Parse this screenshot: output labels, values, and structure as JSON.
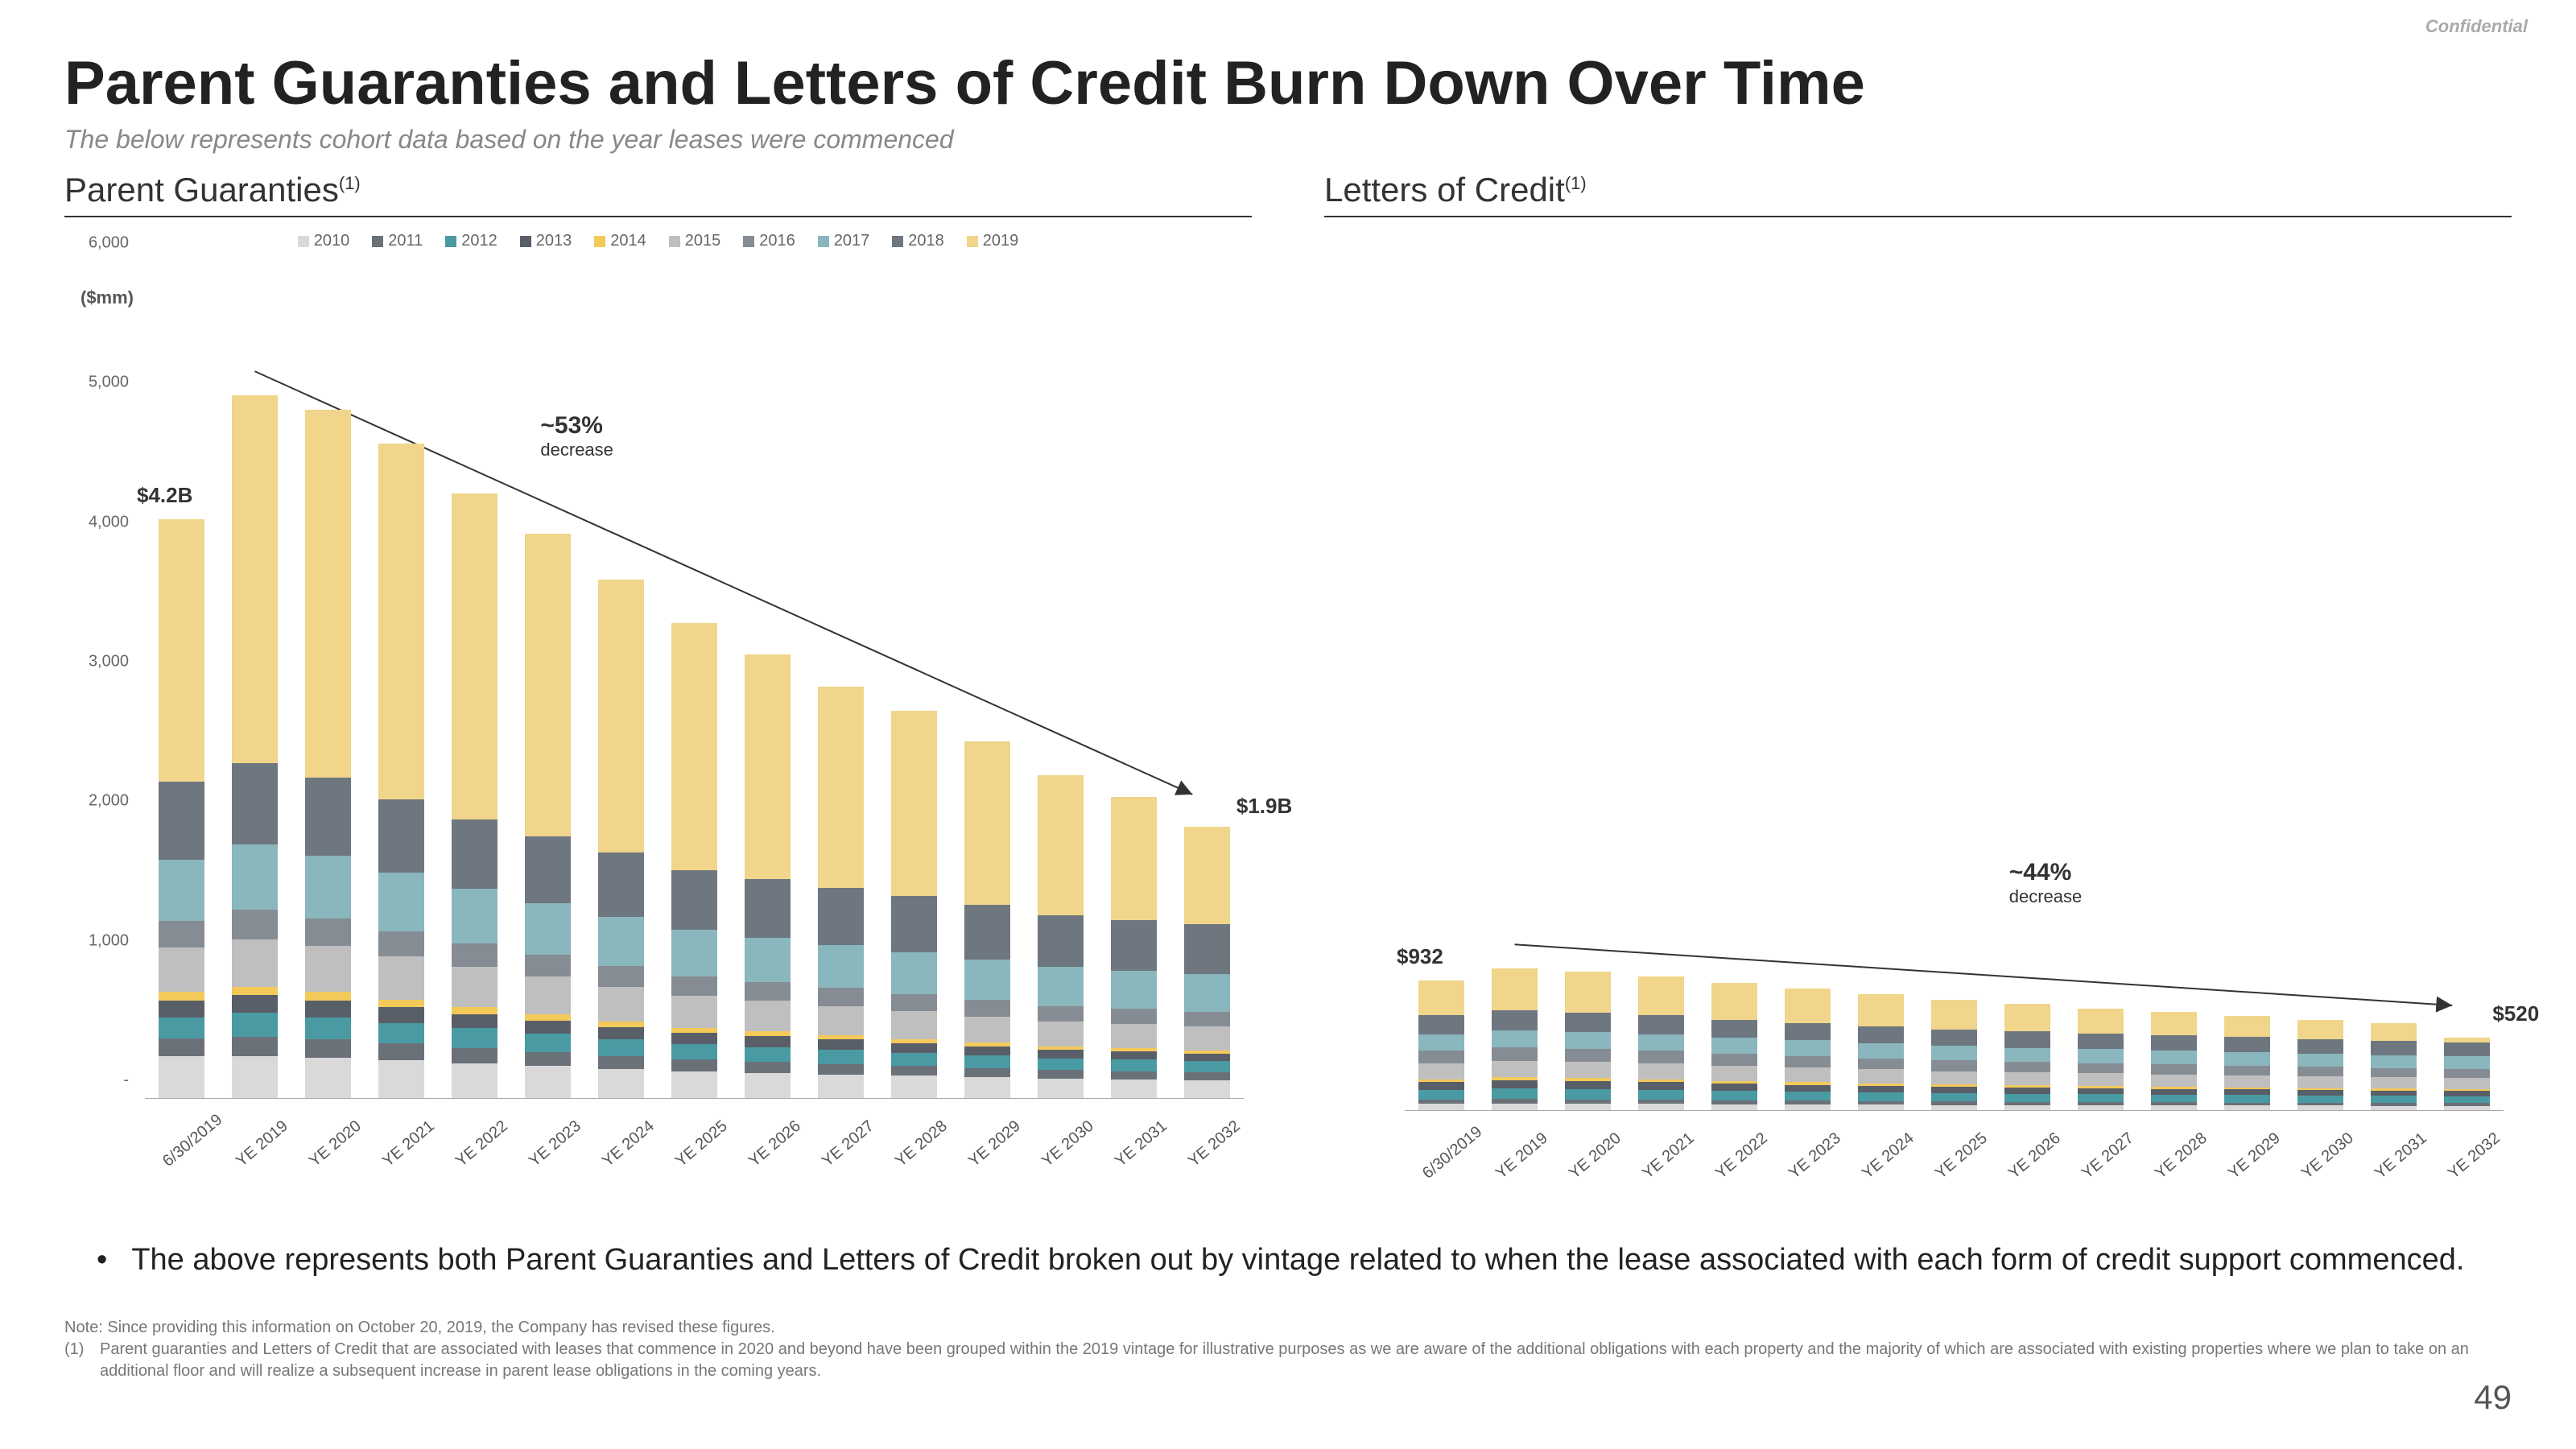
{
  "confidential": "Confidential",
  "title": "Parent Guaranties and Letters of Credit Burn Down Over Time",
  "subtitle": "The below represents cohort data based on the year leases were commenced",
  "page_number": "49",
  "legend": {
    "years": [
      "2010",
      "2011",
      "2012",
      "2013",
      "2014",
      "2015",
      "2016",
      "2017",
      "2018",
      "2019"
    ],
    "colors": [
      "#d9d9d9",
      "#6b7179",
      "#4a9aa3",
      "#595f68",
      "#f3c95a",
      "#bfbfbf",
      "#868c93",
      "#8ab6bd",
      "#6e7680",
      "#f0d58a"
    ]
  },
  "x_categories": [
    "6/30/2019",
    "YE 2019",
    "YE 2020",
    "YE 2021",
    "YE 2022",
    "YE 2023",
    "YE 2024",
    "YE 2025",
    "YE 2026",
    "YE 2027",
    "YE 2028",
    "YE 2029",
    "YE 2030",
    "YE 2031",
    "YE 2032"
  ],
  "chart1": {
    "title": "Parent Guaranties",
    "title_sup": "(1)",
    "y_unit": "($mm)",
    "ymax": 6000,
    "yticks": [
      "-",
      "1,000",
      "2,000",
      "3,000",
      "4,000",
      "5,000",
      "6,000"
    ],
    "ytick_vals": [
      0,
      1000,
      2000,
      3000,
      4000,
      5000,
      6000
    ],
    "callout_start": "$4.2B",
    "callout_end": "$1.9B",
    "decrease": "~53%",
    "decrease_sub": "decrease",
    "stacks": [
      [
        300,
        130,
        150,
        120,
        60,
        320,
        190,
        440,
        560,
        1880
      ],
      [
        300,
        140,
        170,
        130,
        60,
        340,
        210,
        470,
        580,
        2640
      ],
      [
        290,
        130,
        160,
        120,
        60,
        330,
        200,
        450,
        560,
        2640
      ],
      [
        270,
        120,
        150,
        110,
        55,
        310,
        180,
        420,
        530,
        2550
      ],
      [
        250,
        110,
        140,
        100,
        50,
        290,
        170,
        390,
        500,
        2340
      ],
      [
        230,
        100,
        130,
        95,
        45,
        270,
        160,
        370,
        480,
        2170
      ],
      [
        210,
        90,
        120,
        90,
        40,
        250,
        150,
        350,
        460,
        1960
      ],
      [
        190,
        85,
        110,
        85,
        35,
        230,
        140,
        330,
        430,
        1770
      ],
      [
        180,
        80,
        105,
        80,
        32,
        220,
        135,
        320,
        420,
        1610
      ],
      [
        170,
        75,
        100,
        75,
        30,
        210,
        130,
        310,
        410,
        1440
      ],
      [
        160,
        70,
        95,
        70,
        28,
        200,
        125,
        300,
        400,
        1330
      ],
      [
        150,
        65,
        90,
        65,
        26,
        190,
        120,
        290,
        390,
        1170
      ],
      [
        140,
        60,
        85,
        60,
        24,
        180,
        110,
        280,
        370,
        1010
      ],
      [
        135,
        58,
        82,
        58,
        23,
        175,
        108,
        275,
        365,
        880
      ],
      [
        130,
        55,
        80,
        55,
        22,
        170,
        105,
        270,
        360,
        700
      ]
    ]
  },
  "chart2": {
    "title": "Letters of Credit",
    "title_sup": "(1)",
    "ymax": 6000,
    "callout_start": "$932",
    "callout_end": "$520",
    "decrease": "~44%",
    "decrease_sub": "decrease",
    "stacks": [
      [
        45,
        30,
        70,
        55,
        20,
        115,
        90,
        120,
        135,
        252
      ],
      [
        48,
        32,
        75,
        58,
        22,
        120,
        95,
        125,
        140,
        300
      ],
      [
        47,
        31,
        73,
        57,
        21,
        118,
        93,
        123,
        138,
        295
      ],
      [
        45,
        30,
        70,
        55,
        20,
        115,
        90,
        120,
        135,
        280
      ],
      [
        43,
        28,
        67,
        52,
        19,
        110,
        86,
        115,
        130,
        260
      ],
      [
        41,
        27,
        64,
        50,
        18,
        105,
        83,
        112,
        126,
        244
      ],
      [
        39,
        26,
        62,
        48,
        17,
        100,
        80,
        108,
        122,
        228
      ],
      [
        37,
        25,
        59,
        46,
        16,
        96,
        77,
        105,
        118,
        211
      ],
      [
        36,
        24,
        57,
        44,
        16,
        93,
        75,
        103,
        116,
        196
      ],
      [
        35,
        24,
        56,
        43,
        15,
        91,
        73,
        100,
        113,
        180
      ],
      [
        34,
        23,
        54,
        42,
        15,
        89,
        72,
        98,
        111,
        167
      ],
      [
        33,
        22,
        53,
        41,
        14,
        86,
        70,
        96,
        109,
        151
      ],
      [
        32,
        22,
        51,
        40,
        14,
        84,
        68,
        94,
        106,
        139
      ],
      [
        31,
        21,
        50,
        39,
        13,
        82,
        67,
        92,
        104,
        126
      ],
      [
        30,
        21,
        49,
        38,
        13,
        80,
        65,
        90,
        102,
        32
      ]
    ]
  },
  "bullet": "The above represents both Parent Guaranties and Letters of Credit broken out by vintage related to when the lease associated with each form of credit support commenced.",
  "footnote_note": "Note: Since providing this information on October 20, 2019, the Company has revised these figures.",
  "footnote_1": "Parent guaranties and Letters of Credit that are associated with leases that commence in 2020 and beyond have been grouped within the 2019 vintage for illustrative purposes as we are aware of the additional obligations with each property and the majority of which are associated with existing properties where we plan to take on an additional floor and will realize a subsequent increase in parent lease obligations in the coming years.",
  "layout": {
    "bar_width_pct": 4.2,
    "bar_gap_pct": 6.5
  }
}
